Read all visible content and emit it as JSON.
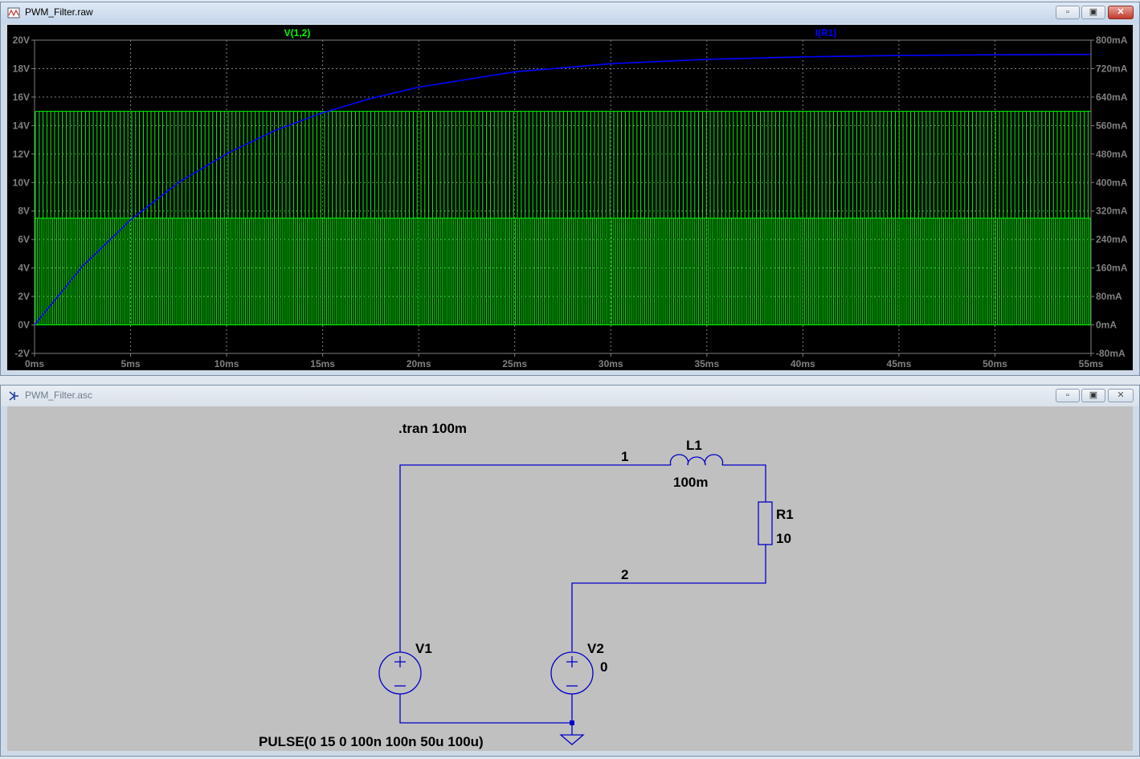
{
  "plot_window": {
    "title": "PWM_Filter.raw",
    "icon": "waveform-viewer-icon",
    "buttons": {
      "minimize": "minimize-icon",
      "maximize": "maximize-icon",
      "close": "close-icon"
    }
  },
  "schematic_window": {
    "title": "PWM_Filter.asc",
    "icon": "schematic-icon",
    "buttons": {
      "minimize": "minimize-icon",
      "maximize": "maximize-icon",
      "close": "close-icon"
    }
  },
  "chart_data": {
    "type": "line",
    "x_ticks": [
      "0ms",
      "5ms",
      "10ms",
      "15ms",
      "20ms",
      "25ms",
      "30ms",
      "35ms",
      "40ms",
      "45ms",
      "50ms",
      "55ms"
    ],
    "x_range_ms": [
      0,
      55
    ],
    "y_left_ticks": [
      "20V",
      "18V",
      "16V",
      "14V",
      "12V",
      "10V",
      "8V",
      "6V",
      "4V",
      "2V",
      "0V",
      "-2V"
    ],
    "y_left_range": [
      -2,
      20
    ],
    "y_right_ticks": [
      "800mA",
      "720mA",
      "640mA",
      "560mA",
      "480mA",
      "400mA",
      "320mA",
      "240mA",
      "160mA",
      "80mA",
      "0mA",
      "-80mA"
    ],
    "y_right_range": [
      -80,
      800
    ],
    "grid": true,
    "series": [
      {
        "name": "V(1,2)",
        "color": "#00ff00",
        "axis": "left",
        "shape": "pwm_square_wave",
        "low_values_V": [
          0,
          0
        ],
        "high_values_V": [
          7.5,
          15
        ],
        "pulse_width_us": 50,
        "period_us": 100
      },
      {
        "name": "I(R1)",
        "color": "#0000ff",
        "axis": "right",
        "shape": "exponential_rise",
        "x_ms": [
          0,
          2.5,
          5,
          7.5,
          10,
          12.5,
          15,
          17.5,
          20,
          25,
          30,
          35,
          40,
          45,
          50,
          55
        ],
        "y_mA": [
          0,
          165,
          295,
          400,
          481,
          546,
          596,
          636,
          668,
          711,
          734,
          746,
          753,
          757,
          759,
          760
        ]
      }
    ]
  },
  "schematic": {
    "directive": ".tran 100m",
    "net_labels": [
      "1",
      "2"
    ],
    "inductor": {
      "name": "L1",
      "value": "100m"
    },
    "resistor": {
      "name": "R1",
      "value": "10"
    },
    "source_v1": {
      "name": "V1",
      "value": "PULSE(0 15 0 100n 100n 50u 100u)"
    },
    "source_v2": {
      "name": "V2",
      "value": "0"
    },
    "wire_color": "#0000c8",
    "ground": "ground-icon"
  }
}
